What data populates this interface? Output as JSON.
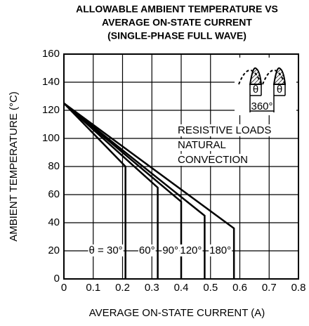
{
  "chart_data": {
    "type": "line",
    "title": [
      "ALLOWABLE AMBIENT TEMPERATURE VS",
      "AVERAGE ON-STATE CURRENT",
      "(SINGLE-PHASE FULL WAVE)"
    ],
    "xlabel": "AVERAGE ON-STATE CURRENT  (A)",
    "ylabel": "AMBIENT TEMPERATURE (°C)",
    "xlim": [
      0,
      0.8
    ],
    "xticks": [
      0,
      0.1,
      0.2,
      0.3,
      0.4,
      0.5,
      0.6,
      0.7,
      0.8
    ],
    "ylim": [
      0,
      160
    ],
    "yticks": [
      0,
      20,
      40,
      60,
      80,
      100,
      120,
      140,
      160
    ],
    "grid": true,
    "series": [
      {
        "name": "θ = 30°",
        "color": "#000000",
        "x": [
          0,
          0.21,
          0.21
        ],
        "values": [
          125,
          80,
          0
        ]
      },
      {
        "name": "60°",
        "color": "#000000",
        "x": [
          0,
          0.32,
          0.32
        ],
        "values": [
          125,
          65,
          0
        ]
      },
      {
        "name": "90°",
        "color": "#000000",
        "x": [
          0,
          0.4,
          0.4
        ],
        "values": [
          125,
          55,
          0
        ]
      },
      {
        "name": "120°",
        "color": "#000000",
        "x": [
          0,
          0.48,
          0.48
        ],
        "values": [
          125,
          45,
          0
        ]
      },
      {
        "name": "180°",
        "color": "#000000",
        "x": [
          0,
          0.58,
          0.58
        ],
        "values": [
          125,
          36,
          0
        ]
      }
    ],
    "annotations": [
      "RESISTIVE LOADS",
      "NATURAL",
      "CONVECTION"
    ],
    "inset": {
      "angle": "θ",
      "period": "360°"
    }
  }
}
